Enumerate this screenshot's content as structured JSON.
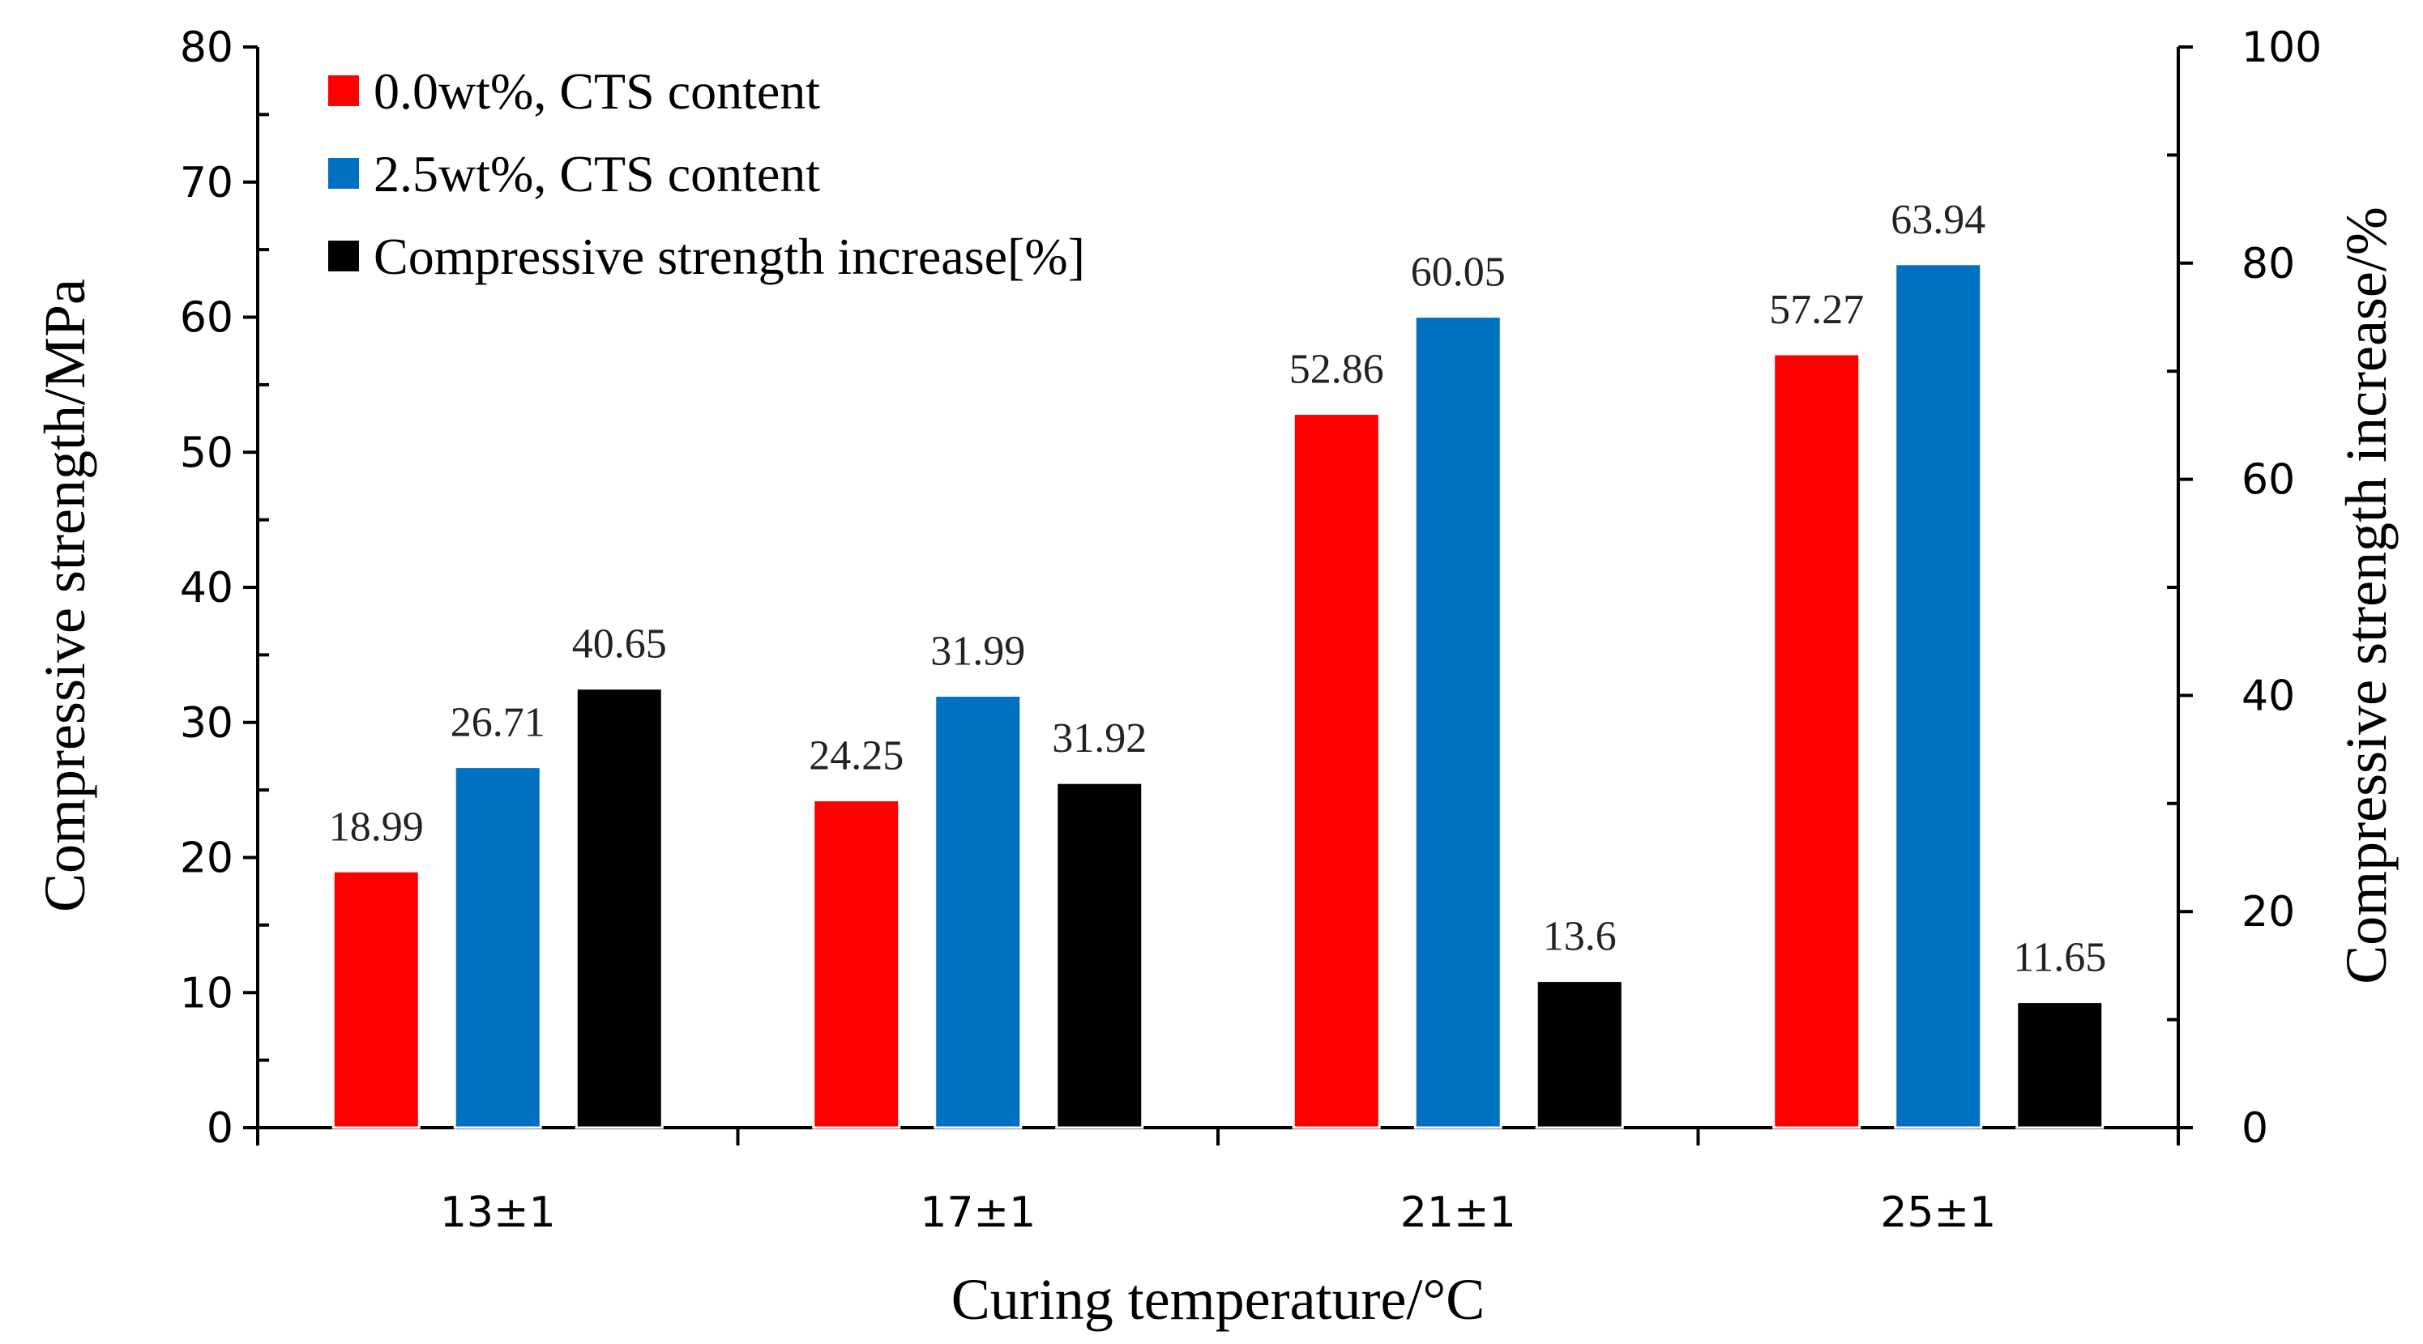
{
  "chart_data": {
    "type": "bar",
    "categories": [
      "13±1",
      "17±1",
      "21±1",
      "25±1"
    ],
    "series": [
      {
        "name": "0.0wt%, CTS content",
        "axis": "left",
        "color": "#ff0000",
        "values": [
          18.99,
          24.25,
          52.86,
          57.27
        ],
        "labels": [
          "18.99",
          "24.25",
          "52.86",
          "57.27"
        ]
      },
      {
        "name": "2.5wt%, CTS content",
        "axis": "left",
        "color": "#0070c0",
        "values": [
          26.71,
          31.99,
          60.05,
          63.94
        ],
        "labels": [
          "26.71",
          "31.99",
          "60.05",
          "63.94"
        ]
      },
      {
        "name": "Compressive strength increase[%]",
        "axis": "right",
        "color": "#000000",
        "values": [
          40.65,
          31.92,
          13.6,
          11.65
        ],
        "labels": [
          "40.65",
          "31.92",
          "13.6",
          "11.65"
        ]
      }
    ],
    "xlabel": "Curing temperature/°C",
    "ylabel": "Compressive strength/MPa",
    "y2label": "Compressive strength increase/%",
    "ylim": [
      0,
      80
    ],
    "y2lim": [
      0,
      100
    ],
    "yticks": [
      "0",
      "10",
      "20",
      "30",
      "40",
      "50",
      "60",
      "70",
      "80"
    ],
    "y2ticks": [
      "0",
      "20",
      "40",
      "60",
      "80",
      "100"
    ],
    "legend_position": "top-left",
    "grid": false
  }
}
